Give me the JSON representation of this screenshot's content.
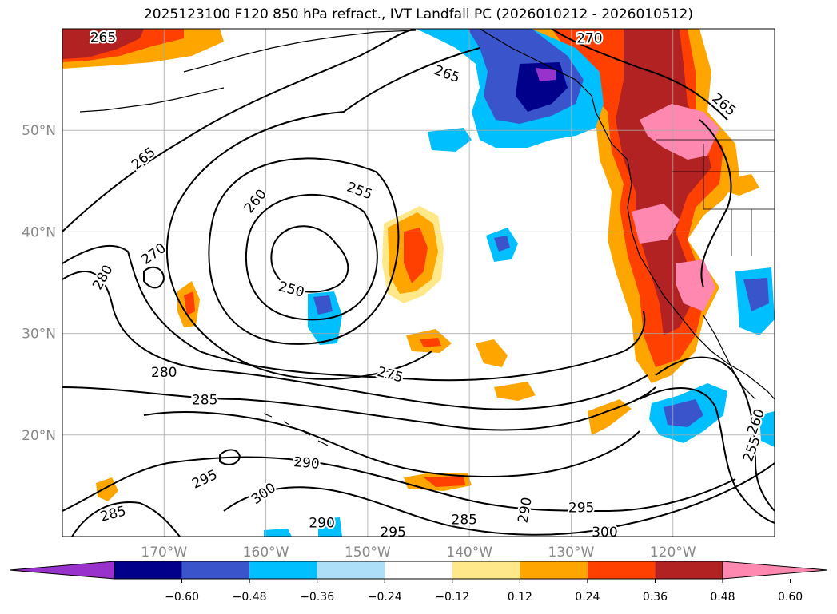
{
  "title": "2025123100 F120 850 hPa refract., IVT Landfall PC (2026010212 - 2026010512)",
  "map": {
    "lon_range": [
      -180,
      -110
    ],
    "lat_range": [
      10,
      60
    ],
    "lon_ticks": [
      {
        "lon": -170,
        "label": "170°W"
      },
      {
        "lon": -160,
        "label": "160°W"
      },
      {
        "lon": -150,
        "label": "150°W"
      },
      {
        "lon": -140,
        "label": "140°W"
      },
      {
        "lon": -130,
        "label": "130°W"
      },
      {
        "lon": -120,
        "label": "120°W"
      }
    ],
    "lat_ticks": [
      {
        "lat": 50,
        "label": "50°N"
      },
      {
        "lat": 40,
        "label": "40°N"
      },
      {
        "lat": 30,
        "label": "30°N"
      },
      {
        "lat": 20,
        "label": "20°N"
      }
    ],
    "tick_label_color": "#888888",
    "grid": true
  },
  "contour_labels": [
    {
      "text": "265",
      "lon": -176,
      "lat": 59.1,
      "rot": 0
    },
    {
      "text": "270",
      "lon": -128.2,
      "lat": 59,
      "rot": 0
    },
    {
      "text": "265",
      "lon": -142.2,
      "lat": 55.5,
      "rot": 20
    },
    {
      "text": "265",
      "lon": -115,
      "lat": 52.5,
      "rot": 40
    },
    {
      "text": "265",
      "lon": -172,
      "lat": 47.2,
      "rot": -40
    },
    {
      "text": "260",
      "lon": -161,
      "lat": 43,
      "rot": -50
    },
    {
      "text": "255",
      "lon": -150.8,
      "lat": 44,
      "rot": 20
    },
    {
      "text": "270",
      "lon": -171,
      "lat": 37.8,
      "rot": -35
    },
    {
      "text": "280",
      "lon": -176,
      "lat": 35.5,
      "rot": -60
    },
    {
      "text": "250",
      "lon": -157.5,
      "lat": 34.3,
      "rot": 15
    },
    {
      "text": "280",
      "lon": -170,
      "lat": 26.1,
      "rot": 0
    },
    {
      "text": "275",
      "lon": -147.8,
      "lat": 25.9,
      "rot": 15
    },
    {
      "text": "285",
      "lon": -166,
      "lat": 23.4,
      "rot": 0
    },
    {
      "text": "290",
      "lon": -156,
      "lat": 17.2,
      "rot": 5
    },
    {
      "text": "295",
      "lon": -166,
      "lat": 15.6,
      "rot": -25
    },
    {
      "text": "300",
      "lon": -160.2,
      "lat": 14.2,
      "rot": -35
    },
    {
      "text": "285",
      "lon": -175,
      "lat": 12.2,
      "rot": -15
    },
    {
      "text": "290",
      "lon": -154.5,
      "lat": 11.3,
      "rot": 0
    },
    {
      "text": "295",
      "lon": -147.5,
      "lat": 10.4,
      "rot": 0
    },
    {
      "text": "285",
      "lon": -140.5,
      "lat": 11.6,
      "rot": 0
    },
    {
      "text": "290",
      "lon": -134.5,
      "lat": 12.6,
      "rot": -80
    },
    {
      "text": "295",
      "lon": -129,
      "lat": 12.8,
      "rot": 0
    },
    {
      "text": "300",
      "lon": -126.7,
      "lat": 10.4,
      "rot": 0
    },
    {
      "text": "260",
      "lon": -111.8,
      "lat": 21.3,
      "rot": -70
    },
    {
      "text": "255",
      "lon": -112.2,
      "lat": 18.6,
      "rot": -70
    }
  ],
  "colorbar": {
    "colors": [
      "#9932cc",
      "#00008b",
      "#3a55cc",
      "#00bfff",
      "#ade0f8",
      "#ffffff",
      "#ffe88a",
      "#ffa500",
      "#ff4000",
      "#b22222",
      "#ff88b0"
    ],
    "tick_labels": [
      "−0.60",
      "−0.48",
      "−0.36",
      "−0.24",
      "−0.12",
      "0.12",
      "0.24",
      "0.36",
      "0.48",
      "0.60"
    ]
  }
}
